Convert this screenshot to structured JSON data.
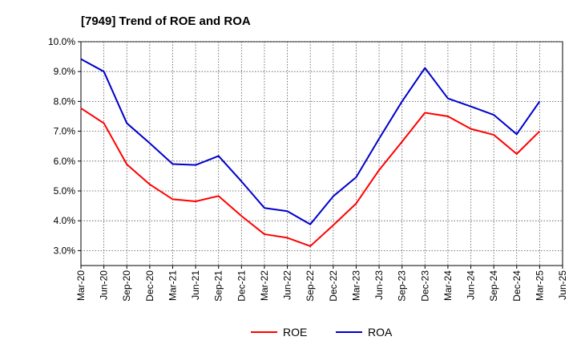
{
  "chart_data": {
    "type": "line",
    "title": "[7949]  Trend of ROE and ROA",
    "xlabel": "",
    "ylabel": "",
    "ylim": [
      2.5,
      10.0
    ],
    "yticks": [
      3.0,
      4.0,
      5.0,
      6.0,
      7.0,
      8.0,
      9.0,
      10.0
    ],
    "ytick_labels": [
      "3.0%",
      "4.0%",
      "5.0%",
      "6.0%",
      "7.0%",
      "8.0%",
      "9.0%",
      "10.0%"
    ],
    "categories": [
      "Mar-20",
      "Jun-20",
      "Sep-20",
      "Dec-20",
      "Mar-21",
      "Jun-21",
      "Sep-21",
      "Dec-21",
      "Mar-22",
      "Jun-22",
      "Sep-22",
      "Dec-22",
      "Mar-23",
      "Jun-23",
      "Sep-23",
      "Dec-23",
      "Mar-24",
      "Jun-24",
      "Sep-24",
      "Dec-24",
      "Mar-25",
      "Jun-25"
    ],
    "grid": true,
    "legend_position": "bottom-center",
    "series": [
      {
        "name": "ROE",
        "color": "#ff0000",
        "values": [
          7.77,
          7.27,
          5.89,
          5.22,
          4.72,
          4.65,
          4.83,
          4.16,
          3.55,
          3.43,
          3.15,
          3.85,
          4.58,
          5.7,
          6.65,
          7.62,
          7.5,
          7.08,
          6.88,
          6.24,
          7.0,
          null
        ]
      },
      {
        "name": "ROA",
        "color": "#0000cc",
        "values": [
          9.42,
          9.0,
          7.27,
          6.6,
          5.9,
          5.87,
          6.17,
          5.32,
          4.43,
          4.32,
          3.88,
          4.82,
          5.46,
          6.75,
          8.0,
          9.12,
          8.1,
          7.83,
          7.55,
          6.9,
          8.0,
          null
        ]
      }
    ]
  }
}
